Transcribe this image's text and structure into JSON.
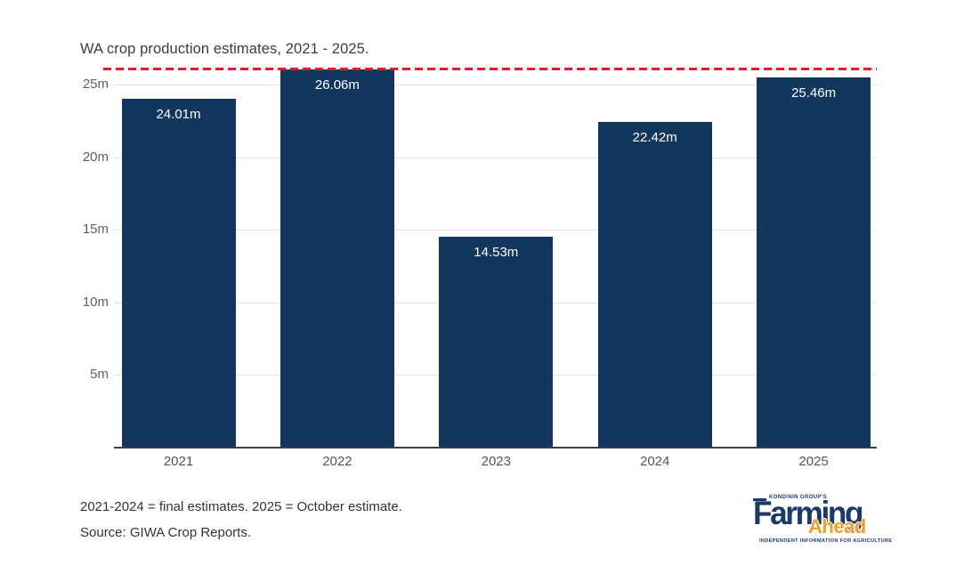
{
  "title": "WA crop production estimates, 2021 - 2025.",
  "chart_data": {
    "type": "bar",
    "title": "WA crop production estimates, 2021 - 2025.",
    "categories": [
      "2021",
      "2022",
      "2023",
      "2024",
      "2025"
    ],
    "values": [
      24.01,
      26.06,
      14.53,
      22.42,
      25.46
    ],
    "bar_labels": [
      "24.01m",
      "26.06m",
      "14.53m",
      "22.42m",
      "25.46m"
    ],
    "unit": "m",
    "xlabel": "",
    "ylabel": "",
    "ylim": [
      0,
      26.5
    ],
    "yticks": [
      {
        "value": 5,
        "label": "5m"
      },
      {
        "value": 10,
        "label": "10m"
      },
      {
        "value": 15,
        "label": "15m"
      },
      {
        "value": 20,
        "label": "20m"
      },
      {
        "value": 25,
        "label": "25m"
      }
    ],
    "grid": true,
    "legend": false,
    "value_labels_inside_bars": true,
    "reference_line": {
      "value": 26.06,
      "style": "dashed",
      "color": "#e8192c"
    }
  },
  "footer": {
    "note": "2021-2024 = final estimates. 2025 = October estimate.",
    "source": "Source: GIWA Crop Reports."
  },
  "logo": {
    "kicker": "KONDININ GROUP'S",
    "word1": "Farming",
    "word2": "Ahead",
    "tagline": "INDEPENDENT INFORMATION FOR AGRICULTURE"
  },
  "colors": {
    "bar": "#12365e",
    "grid": "#e3e3e3",
    "axis_line": "#3f3f3f",
    "tick_text": "#606060",
    "value_text": "#ffffff",
    "title_text": "#3d3d3d",
    "footer_text": "#333333",
    "reference": "#e8192c",
    "logo_navy": "#1b3a66",
    "logo_orange": "#f09f2e",
    "background": "#ffffff"
  }
}
